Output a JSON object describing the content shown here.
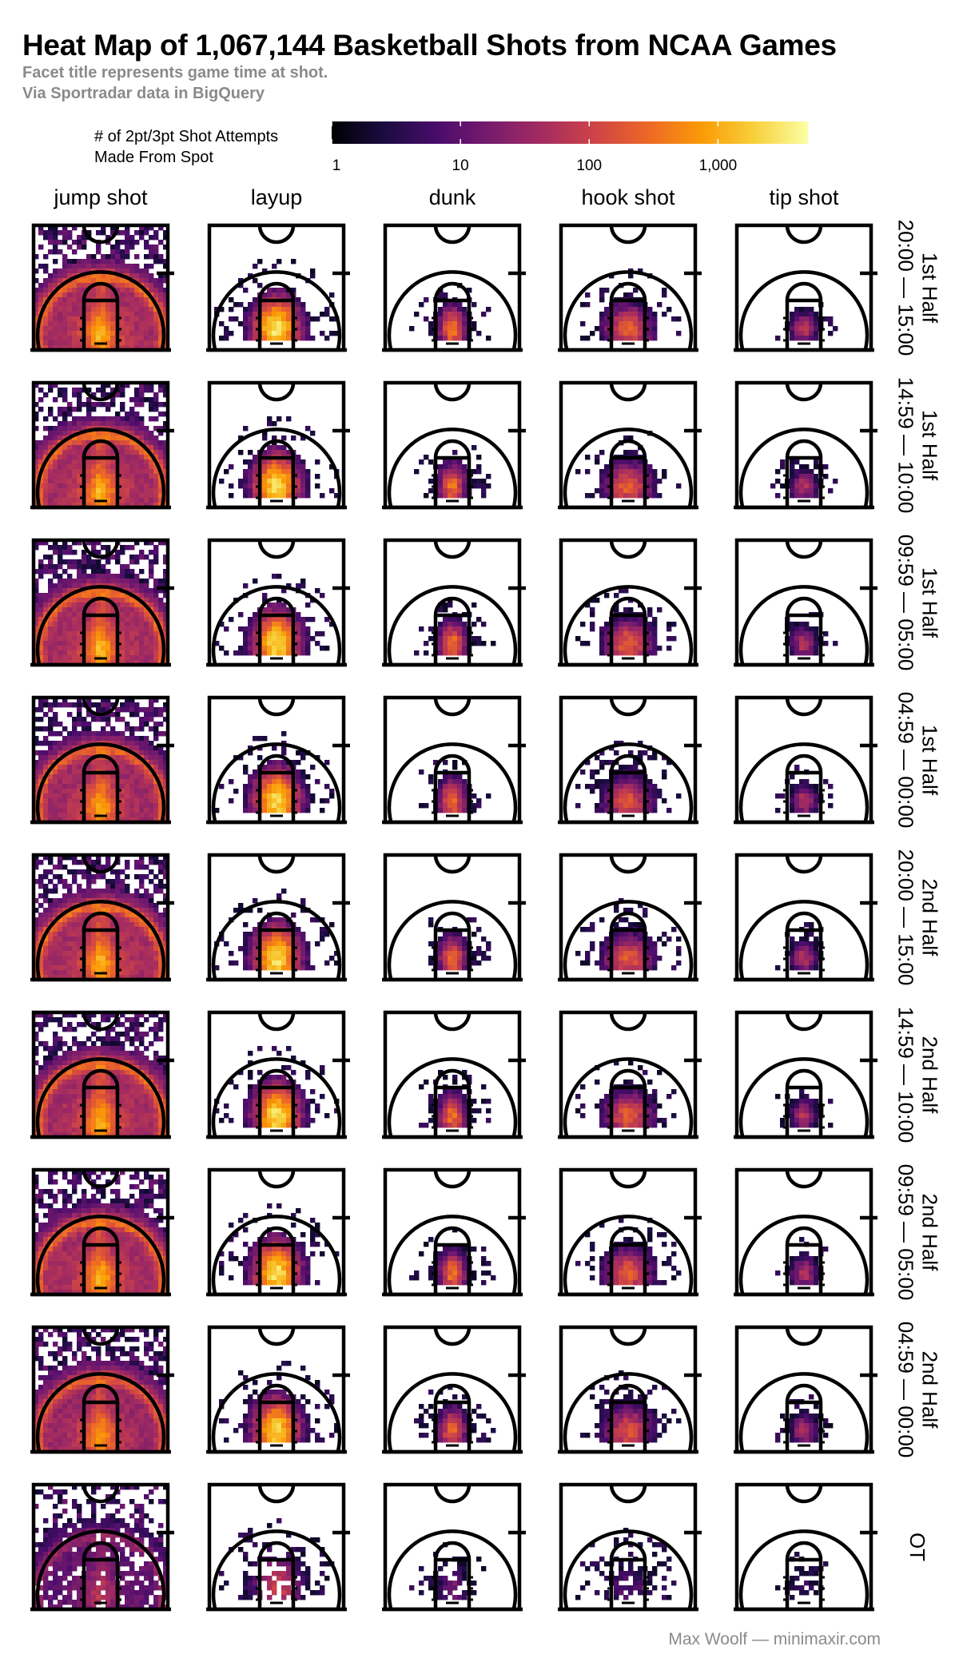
{
  "title": "Heat Map of 1,067,144 Basketball Shots from NCAA Games",
  "subtitle_lines": [
    "Facet title represents game time at shot.",
    "Via Sportradar data in BigQuery"
  ],
  "caption": "Max Woolf — minimaxir.com",
  "chart_data": {
    "type": "heatmap",
    "facet_columns": [
      "jump shot",
      "layup",
      "dunk",
      "hook shot",
      "tip shot"
    ],
    "facet_rows": [
      [
        "1st Half",
        "20:00 — 15:00"
      ],
      [
        "1st Half",
        "14:59 — 10:00"
      ],
      [
        "1st Half",
        "09:59 — 05:00"
      ],
      [
        "1st Half",
        "04:59 — 00:00"
      ],
      [
        "2nd Half",
        "20:00 — 15:00"
      ],
      [
        "2nd Half",
        "14:59 — 10:00"
      ],
      [
        "2nd Half",
        "09:59 — 05:00"
      ],
      [
        "2nd Half",
        "04:59 — 00:00"
      ],
      [
        "OT"
      ]
    ],
    "legend": {
      "title_lines": [
        "# of 2pt/3pt Shot Attempts",
        "Made From Spot"
      ],
      "scale": "log10",
      "ticks": [
        1,
        10,
        100,
        1000
      ],
      "tick_labels": [
        "1",
        "10",
        "100",
        "1,000"
      ],
      "max": 5000
    },
    "colors": {
      "palette": "inferno",
      "stops": [
        "#000004",
        "#1b0c41",
        "#4a0c6b",
        "#781c6d",
        "#a52c60",
        "#cf4446",
        "#ed6925",
        "#fb9b06",
        "#f7d13d",
        "#fcffa4"
      ],
      "court_lines": "#000000"
    },
    "peak_log_counts": {
      "jump shot": [
        3.6,
        3.6,
        3.6,
        3.5,
        3.6,
        3.6,
        3.6,
        3.4,
        2.2
      ],
      "layup": [
        3.5,
        3.4,
        3.4,
        3.4,
        3.4,
        3.4,
        3.4,
        3.3,
        2.0
      ],
      "dunk": [
        2.6,
        2.5,
        2.5,
        2.5,
        2.5,
        2.5,
        2.5,
        2.4,
        1.2
      ],
      "hook shot": [
        2.3,
        2.3,
        2.3,
        2.2,
        2.3,
        2.3,
        2.3,
        2.2,
        0.9
      ],
      "tip shot": [
        1.9,
        1.8,
        1.8,
        1.8,
        1.8,
        1.8,
        1.8,
        1.7,
        0.7
      ]
    },
    "grid": false
  }
}
